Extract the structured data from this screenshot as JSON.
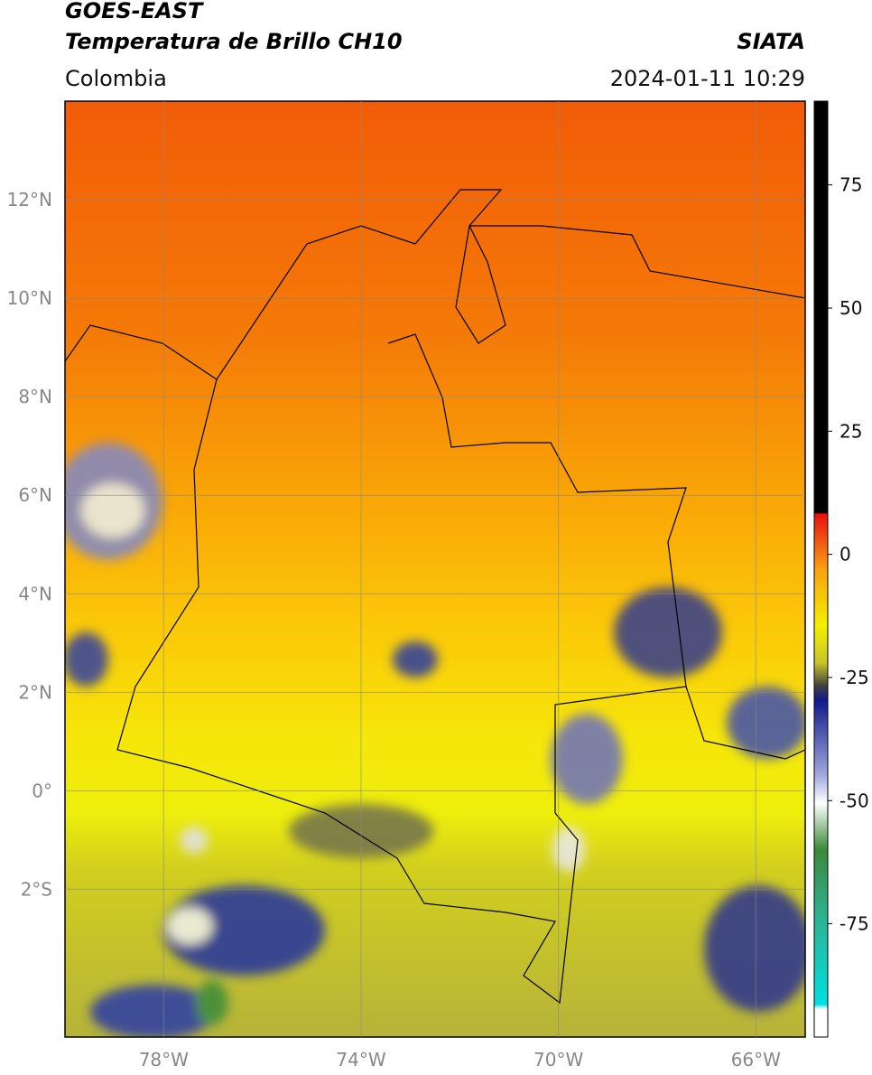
{
  "header": {
    "title": "GOES-EAST",
    "subtitle": "Temperatura de Brillo CH10",
    "source": "SIATA",
    "region": "Colombia",
    "datetime": "2024-01-11 10:29"
  },
  "map": {
    "lonlim": [
      -80,
      -65
    ],
    "latlim": [
      -5,
      14
    ],
    "lon_ticks": [
      {
        "value": -78,
        "label": "78°W"
      },
      {
        "value": -74,
        "label": "74°W"
      },
      {
        "value": -70,
        "label": "70°W"
      },
      {
        "value": -66,
        "label": "66°W"
      }
    ],
    "lat_ticks": [
      {
        "value": 12,
        "label": "12°N"
      },
      {
        "value": 10,
        "label": "10°N"
      },
      {
        "value": 8,
        "label": "8°N"
      },
      {
        "value": 6,
        "label": "6°N"
      },
      {
        "value": 4,
        "label": "4°N"
      },
      {
        "value": 2,
        "label": "2°N"
      },
      {
        "value": 0,
        "label": "0°"
      },
      {
        "value": -2,
        "label": "2°S"
      }
    ]
  },
  "colorbar": {
    "lim": [
      -98,
      92
    ],
    "ticks": [
      75,
      50,
      25,
      0,
      -25,
      -50,
      -75
    ]
  }
}
